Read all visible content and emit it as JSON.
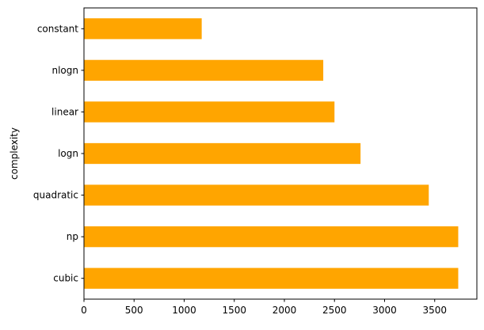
{
  "chart_data": {
    "type": "bar",
    "orientation": "horizontal",
    "categories": [
      "cubic",
      "np",
      "quadratic",
      "logn",
      "linear",
      "nlogn",
      "constant"
    ],
    "values": [
      3735,
      3735,
      3441,
      2760,
      2500,
      2388,
      1175
    ],
    "title": "",
    "xlabel": "",
    "ylabel": "complexity",
    "xlim": [
      0,
      3921
    ],
    "xticks": [
      0,
      500,
      1000,
      1500,
      2000,
      2500,
      3000,
      3500
    ],
    "grid": false,
    "bar_color": "#ffa500"
  }
}
